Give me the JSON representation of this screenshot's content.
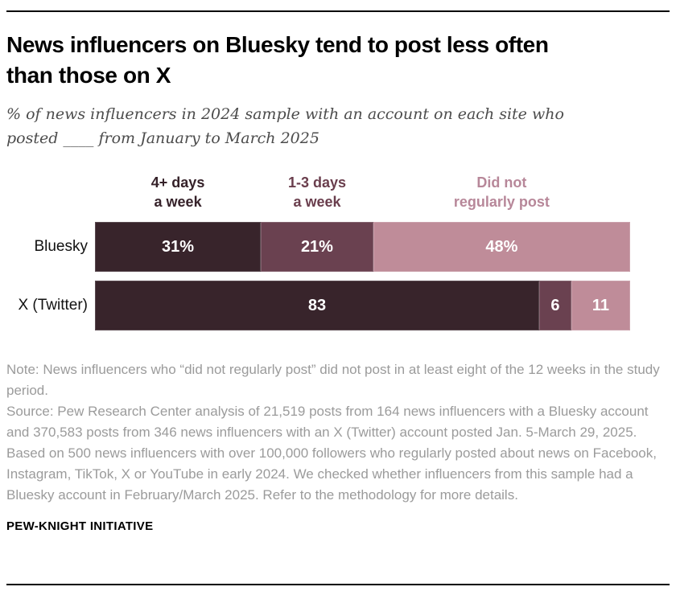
{
  "page": {
    "title_lines": [
      "News influencers on Bluesky tend to post less often",
      "than those on X"
    ],
    "subtitle_lines": [
      "% of news influencers in 2024 sample with an account on each site who",
      "posted ____ from January to March 2025"
    ],
    "note": "Note: News influencers who “did not regularly post” did not post in at least eight of the 12 weeks in the study period.",
    "source": "Source: Pew Research Center analysis of 21,519 posts from 164 news influencers with a Bluesky account and 370,583 posts from 346 news influencers with an X (Twitter) account posted Jan. 5-March 29, 2025. Based on 500 news influencers with over 100,000 followers who regularly posted about news on Facebook, Instagram, TikTok, X or YouTube in early 2024. We checked whether influencers from this sample had a Bluesky account in February/March 2025. Refer to the methodology for more details.",
    "footer": "PEW-KNIGHT INITIATIVE"
  },
  "chart_data": {
    "type": "bar",
    "stacked": true,
    "orientation": "horizontal",
    "title": "News influencers on Bluesky tend to post less often than those on X",
    "subtitle": "% of news influencers in 2024 sample with an account on each site who posted ____ from January to March 2025",
    "categories": [
      "Bluesky",
      "X (Twitter)"
    ],
    "legend": [
      "4+ days\na week",
      "1-3 days\na week",
      "Did not\nregularly post"
    ],
    "series": [
      {
        "name": "4+ days a week",
        "values": [
          31,
          83
        ]
      },
      {
        "name": "1-3 days a week",
        "values": [
          21,
          6
        ]
      },
      {
        "name": "Did not regularly post",
        "values": [
          48,
          11
        ]
      }
    ],
    "value_labels": [
      [
        "31%",
        "21%",
        "48%"
      ],
      [
        "83",
        "6",
        "11"
      ]
    ],
    "colors": [
      "#38242b",
      "#6a4150",
      "#bf8c99"
    ],
    "header_colors": [
      "#36222a",
      "#6a3e4d",
      "#b78799"
    ],
    "xlim": [
      0,
      100
    ],
    "grid": false,
    "legend_position": "top"
  }
}
